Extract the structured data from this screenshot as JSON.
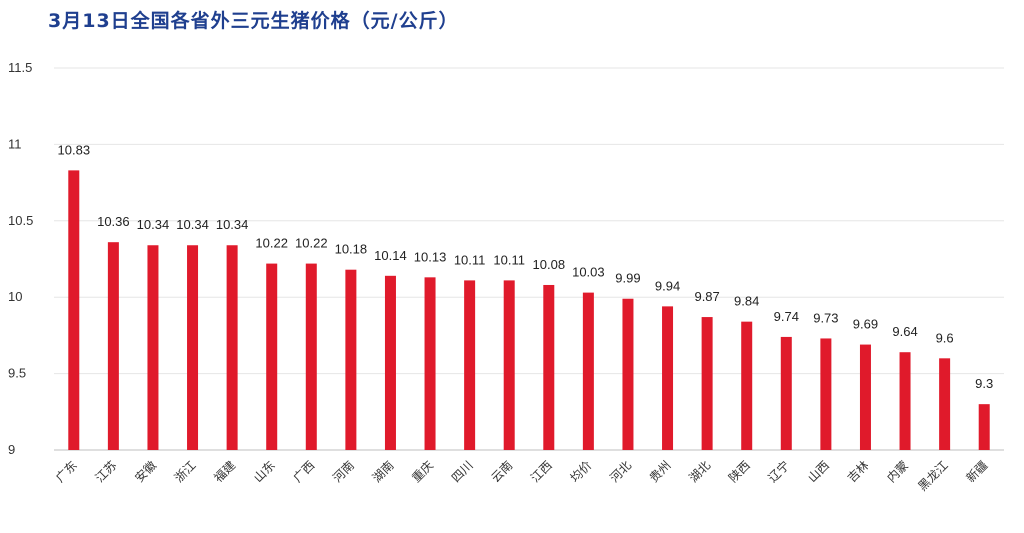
{
  "chart_data": {
    "type": "bar",
    "title": "3月13日全国各省外三元生猪价格（元/公斤）",
    "xlabel": "",
    "ylabel": "",
    "ylim": [
      9,
      11.5
    ],
    "yticks": [
      "9",
      "9.5",
      "10",
      "10.5",
      "11",
      "11.5"
    ],
    "grid": true,
    "bar_color": "#e01a2b",
    "categories": [
      "广东",
      "江苏",
      "安徽",
      "浙江",
      "福建",
      "山东",
      "广西",
      "河南",
      "湖南",
      "重庆",
      "四川",
      "云南",
      "江西",
      "均价",
      "河北",
      "贵州",
      "湖北",
      "陕西",
      "辽宁",
      "山西",
      "吉林",
      "内蒙",
      "黑龙江",
      "新疆"
    ],
    "values": [
      10.83,
      10.36,
      10.34,
      10.34,
      10.34,
      10.22,
      10.22,
      10.18,
      10.14,
      10.13,
      10.11,
      10.11,
      10.08,
      10.03,
      9.99,
      9.94,
      9.87,
      9.84,
      9.74,
      9.73,
      9.69,
      9.64,
      9.6,
      9.3
    ],
    "data_labels": [
      "10.83",
      "10.36",
      "10.34",
      "10.34",
      "10.34",
      "10.22",
      "10.22",
      "10.18",
      "10.14",
      "10.13",
      "10.11",
      "10.11",
      "10.08",
      "10.03",
      "9.99",
      "9.94",
      "9.87",
      "9.84",
      "9.74",
      "9.73",
      "9.69",
      "9.64",
      "9.6",
      "9.3"
    ]
  }
}
